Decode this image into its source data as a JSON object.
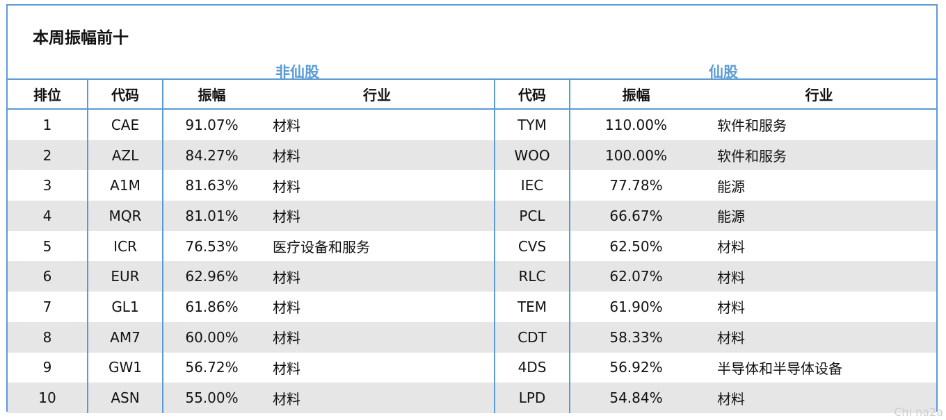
{
  "title": "本周振幅前十",
  "groups": {
    "non_xian": "非仙股",
    "xian": "仙股"
  },
  "headers": {
    "rank": "排位",
    "code_left": "代码",
    "amp_left": "振幅",
    "industry_left": "行业",
    "code_right": "代码",
    "amp_right": "振幅",
    "industry_right": "行业"
  },
  "rows": [
    {
      "rank": "1",
      "code_a": "CAE",
      "amp_a": "91.07%",
      "ind_a": "材料",
      "code_b": "TYM",
      "amp_b": "110.00%",
      "ind_b": "软件和服务"
    },
    {
      "rank": "2",
      "code_a": "AZL",
      "amp_a": "84.27%",
      "ind_a": "材料",
      "code_b": "WOO",
      "amp_b": "100.00%",
      "ind_b": "软件和服务"
    },
    {
      "rank": "3",
      "code_a": "A1M",
      "amp_a": "81.63%",
      "ind_a": "材料",
      "code_b": "IEC",
      "amp_b": "77.78%",
      "ind_b": "能源"
    },
    {
      "rank": "4",
      "code_a": "MQR",
      "amp_a": "81.01%",
      "ind_a": "材料",
      "code_b": "PCL",
      "amp_b": "66.67%",
      "ind_b": "能源"
    },
    {
      "rank": "5",
      "code_a": "ICR",
      "amp_a": "76.53%",
      "ind_a": "医疗设备和服务",
      "code_b": "CVS",
      "amp_b": "62.50%",
      "ind_b": "材料"
    },
    {
      "rank": "6",
      "code_a": "EUR",
      "amp_a": "62.96%",
      "ind_a": "材料",
      "code_b": "RLC",
      "amp_b": "62.07%",
      "ind_b": "材料"
    },
    {
      "rank": "7",
      "code_a": "GL1",
      "amp_a": "61.86%",
      "ind_a": "材料",
      "code_b": "TEM",
      "amp_b": "61.90%",
      "ind_b": "材料"
    },
    {
      "rank": "8",
      "code_a": "AM7",
      "amp_a": "60.00%",
      "ind_a": "材料",
      "code_b": "CDT",
      "amp_b": "58.33%",
      "ind_b": "材料"
    },
    {
      "rank": "9",
      "code_a": "GW1",
      "amp_a": "56.72%",
      "ind_a": "材料",
      "code_b": "4DS",
      "amp_b": "56.92%",
      "ind_b": "半导体和半导体设备"
    },
    {
      "rank": "10",
      "code_a": "ASN",
      "amp_a": "55.00%",
      "ind_a": "材料",
      "code_b": "LPD",
      "amp_b": "54.84%",
      "ind_b": "材料"
    }
  ],
  "watermark": "Chi na2a",
  "colors": {
    "accent": "#5b9bd5",
    "row_alt": "#e6e6e6"
  }
}
